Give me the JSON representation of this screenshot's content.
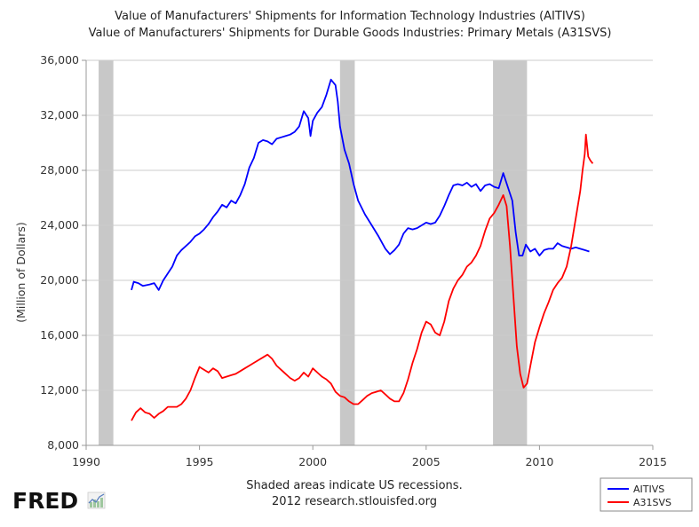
{
  "chart_data": {
    "type": "line",
    "title_lines": [
      "Value of Manufacturers' Shipments for Information Technology Industries (AITIVS)",
      "Value of Manufacturers' Shipments for Durable Goods Industries: Primary Metals (A31SVS)"
    ],
    "ylabel": "(Million of Dollars)",
    "xlabel": "",
    "xlim": [
      1990,
      2015
    ],
    "ylim": [
      8000,
      36000
    ],
    "x_ticks": [
      1990,
      1995,
      2000,
      2005,
      2010,
      2015
    ],
    "x_tick_labels": [
      "1990",
      "1995",
      "2000",
      "2005",
      "2010",
      "2015"
    ],
    "y_ticks": [
      8000,
      12000,
      16000,
      20000,
      24000,
      28000,
      32000,
      36000
    ],
    "y_tick_labels": [
      "8,000",
      "12,000",
      "16,000",
      "20,000",
      "24,000",
      "28,000",
      "32,000",
      "36,000"
    ],
    "grid": "horizontal",
    "recessions": [
      [
        1990.55,
        1991.2
      ],
      [
        2001.2,
        2001.85
      ],
      [
        2007.95,
        2009.45
      ]
    ],
    "series": [
      {
        "name": "AITIVS",
        "color": "#0000ff",
        "points": [
          [
            1992.0,
            19300
          ],
          [
            1992.1,
            19900
          ],
          [
            1992.3,
            19800
          ],
          [
            1992.5,
            19600
          ],
          [
            1992.8,
            19700
          ],
          [
            1993.0,
            19800
          ],
          [
            1993.2,
            19300
          ],
          [
            1993.4,
            20000
          ],
          [
            1993.6,
            20500
          ],
          [
            1993.8,
            21000
          ],
          [
            1994.0,
            21800
          ],
          [
            1994.2,
            22200
          ],
          [
            1994.4,
            22500
          ],
          [
            1994.6,
            22800
          ],
          [
            1994.8,
            23200
          ],
          [
            1995.0,
            23400
          ],
          [
            1995.2,
            23700
          ],
          [
            1995.4,
            24100
          ],
          [
            1995.6,
            24600
          ],
          [
            1995.8,
            25000
          ],
          [
            1996.0,
            25500
          ],
          [
            1996.2,
            25300
          ],
          [
            1996.4,
            25800
          ],
          [
            1996.6,
            25600
          ],
          [
            1996.8,
            26200
          ],
          [
            1997.0,
            27000
          ],
          [
            1997.2,
            28200
          ],
          [
            1997.4,
            28900
          ],
          [
            1997.6,
            30000
          ],
          [
            1997.8,
            30200
          ],
          [
            1998.0,
            30100
          ],
          [
            1998.2,
            29900
          ],
          [
            1998.4,
            30300
          ],
          [
            1998.6,
            30400
          ],
          [
            1998.8,
            30500
          ],
          [
            1999.0,
            30600
          ],
          [
            1999.2,
            30800
          ],
          [
            1999.4,
            31200
          ],
          [
            1999.6,
            32300
          ],
          [
            1999.8,
            31800
          ],
          [
            1999.9,
            30500
          ],
          [
            2000.0,
            31600
          ],
          [
            2000.2,
            32200
          ],
          [
            2000.4,
            32600
          ],
          [
            2000.6,
            33500
          ],
          [
            2000.8,
            34600
          ],
          [
            2001.0,
            34200
          ],
          [
            2001.1,
            33000
          ],
          [
            2001.2,
            31200
          ],
          [
            2001.4,
            29500
          ],
          [
            2001.6,
            28500
          ],
          [
            2001.8,
            27000
          ],
          [
            2002.0,
            25800
          ],
          [
            2002.3,
            24800
          ],
          [
            2002.6,
            24000
          ],
          [
            2002.9,
            23200
          ],
          [
            2003.2,
            22300
          ],
          [
            2003.4,
            21900
          ],
          [
            2003.6,
            22200
          ],
          [
            2003.8,
            22600
          ],
          [
            2004.0,
            23400
          ],
          [
            2004.2,
            23800
          ],
          [
            2004.4,
            23700
          ],
          [
            2004.6,
            23800
          ],
          [
            2004.8,
            24000
          ],
          [
            2005.0,
            24200
          ],
          [
            2005.2,
            24100
          ],
          [
            2005.4,
            24200
          ],
          [
            2005.6,
            24700
          ],
          [
            2005.8,
            25400
          ],
          [
            2006.0,
            26200
          ],
          [
            2006.2,
            26900
          ],
          [
            2006.4,
            27000
          ],
          [
            2006.6,
            26900
          ],
          [
            2006.8,
            27100
          ],
          [
            2007.0,
            26800
          ],
          [
            2007.2,
            27000
          ],
          [
            2007.4,
            26500
          ],
          [
            2007.6,
            26900
          ],
          [
            2007.8,
            27000
          ],
          [
            2008.0,
            26800
          ],
          [
            2008.2,
            26700
          ],
          [
            2008.4,
            27800
          ],
          [
            2008.6,
            26800
          ],
          [
            2008.8,
            25800
          ],
          [
            2008.95,
            23500
          ],
          [
            2009.1,
            21800
          ],
          [
            2009.25,
            21800
          ],
          [
            2009.4,
            22600
          ],
          [
            2009.6,
            22100
          ],
          [
            2009.8,
            22300
          ],
          [
            2010.0,
            21800
          ],
          [
            2010.2,
            22200
          ],
          [
            2010.4,
            22300
          ],
          [
            2010.6,
            22300
          ],
          [
            2010.8,
            22700
          ],
          [
            2011.0,
            22500
          ],
          [
            2011.2,
            22400
          ],
          [
            2011.4,
            22300
          ],
          [
            2011.6,
            22400
          ],
          [
            2011.8,
            22300
          ],
          [
            2012.0,
            22200
          ],
          [
            2012.2,
            22100
          ]
        ]
      },
      {
        "name": "A31SVS",
        "color": "#ff0000",
        "points": [
          [
            1992.0,
            9800
          ],
          [
            1992.2,
            10400
          ],
          [
            1992.4,
            10700
          ],
          [
            1992.6,
            10400
          ],
          [
            1992.8,
            10300
          ],
          [
            1993.0,
            10000
          ],
          [
            1993.2,
            10300
          ],
          [
            1993.4,
            10500
          ],
          [
            1993.6,
            10800
          ],
          [
            1993.8,
            10800
          ],
          [
            1994.0,
            10800
          ],
          [
            1994.2,
            11000
          ],
          [
            1994.4,
            11400
          ],
          [
            1994.6,
            12000
          ],
          [
            1994.8,
            12900
          ],
          [
            1995.0,
            13700
          ],
          [
            1995.2,
            13500
          ],
          [
            1995.4,
            13300
          ],
          [
            1995.6,
            13600
          ],
          [
            1995.8,
            13400
          ],
          [
            1996.0,
            12900
          ],
          [
            1996.2,
            13000
          ],
          [
            1996.4,
            13100
          ],
          [
            1996.6,
            13200
          ],
          [
            1996.8,
            13400
          ],
          [
            1997.0,
            13600
          ],
          [
            1997.2,
            13800
          ],
          [
            1997.4,
            14000
          ],
          [
            1997.6,
            14200
          ],
          [
            1997.8,
            14400
          ],
          [
            1998.0,
            14600
          ],
          [
            1998.2,
            14300
          ],
          [
            1998.4,
            13800
          ],
          [
            1998.6,
            13500
          ],
          [
            1998.8,
            13200
          ],
          [
            1999.0,
            12900
          ],
          [
            1999.2,
            12700
          ],
          [
            1999.4,
            12900
          ],
          [
            1999.6,
            13300
          ],
          [
            1999.8,
            13000
          ],
          [
            2000.0,
            13600
          ],
          [
            2000.2,
            13300
          ],
          [
            2000.4,
            13000
          ],
          [
            2000.6,
            12800
          ],
          [
            2000.8,
            12500
          ],
          [
            2001.0,
            11900
          ],
          [
            2001.2,
            11600
          ],
          [
            2001.4,
            11500
          ],
          [
            2001.6,
            11200
          ],
          [
            2001.8,
            11000
          ],
          [
            2002.0,
            11000
          ],
          [
            2002.2,
            11300
          ],
          [
            2002.4,
            11600
          ],
          [
            2002.6,
            11800
          ],
          [
            2002.8,
            11900
          ],
          [
            2003.0,
            12000
          ],
          [
            2003.2,
            11700
          ],
          [
            2003.4,
            11400
          ],
          [
            2003.6,
            11200
          ],
          [
            2003.8,
            11200
          ],
          [
            2004.0,
            11800
          ],
          [
            2004.2,
            12800
          ],
          [
            2004.4,
            14000
          ],
          [
            2004.6,
            15000
          ],
          [
            2004.8,
            16200
          ],
          [
            2005.0,
            17000
          ],
          [
            2005.2,
            16800
          ],
          [
            2005.4,
            16200
          ],
          [
            2005.6,
            16000
          ],
          [
            2005.8,
            17000
          ],
          [
            2006.0,
            18500
          ],
          [
            2006.2,
            19400
          ],
          [
            2006.4,
            20000
          ],
          [
            2006.6,
            20400
          ],
          [
            2006.8,
            21000
          ],
          [
            2007.0,
            21300
          ],
          [
            2007.2,
            21800
          ],
          [
            2007.4,
            22500
          ],
          [
            2007.6,
            23600
          ],
          [
            2007.8,
            24500
          ],
          [
            2008.0,
            24900
          ],
          [
            2008.2,
            25500
          ],
          [
            2008.4,
            26200
          ],
          [
            2008.55,
            25400
          ],
          [
            2008.7,
            22500
          ],
          [
            2008.85,
            18800
          ],
          [
            2009.0,
            15200
          ],
          [
            2009.15,
            13200
          ],
          [
            2009.3,
            12200
          ],
          [
            2009.45,
            12500
          ],
          [
            2009.6,
            13800
          ],
          [
            2009.8,
            15500
          ],
          [
            2010.0,
            16600
          ],
          [
            2010.2,
            17600
          ],
          [
            2010.4,
            18400
          ],
          [
            2010.6,
            19300
          ],
          [
            2010.8,
            19800
          ],
          [
            2011.0,
            20200
          ],
          [
            2011.2,
            21000
          ],
          [
            2011.4,
            22500
          ],
          [
            2011.6,
            24500
          ],
          [
            2011.8,
            26500
          ],
          [
            2011.9,
            28000
          ],
          [
            2012.0,
            29200
          ],
          [
            2012.05,
            30600
          ],
          [
            2012.15,
            29000
          ],
          [
            2012.25,
            28700
          ],
          [
            2012.35,
            28500
          ]
        ]
      }
    ]
  },
  "footer": {
    "note_line1": "Shaded areas indicate US recessions.",
    "note_line2": "2012 research.stlouisfed.org"
  },
  "logo": {
    "text": "FRED"
  },
  "legend": {
    "items": [
      {
        "label": "AITIVS",
        "color": "#0000ff"
      },
      {
        "label": "A31SVS",
        "color": "#ff0000"
      }
    ]
  }
}
